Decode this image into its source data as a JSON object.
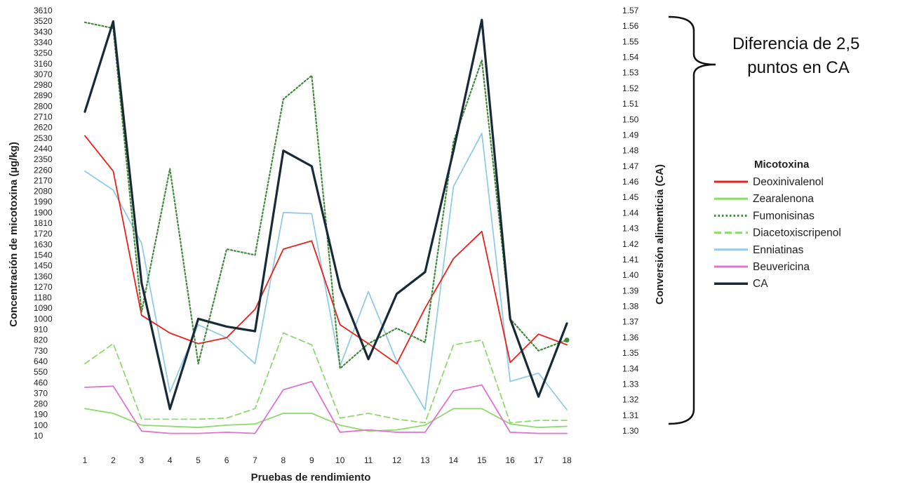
{
  "chart_data": {
    "type": "line",
    "x": [
      1,
      2,
      3,
      4,
      5,
      6,
      7,
      8,
      9,
      10,
      11,
      12,
      13,
      14,
      15,
      16,
      17,
      18
    ],
    "xlabel": "Pruebas de rendimiento",
    "ylabel": "Concentración de micotoxina (µg/kg)",
    "y2label": "Conversión alimenticia (CA)",
    "ylim": [
      10,
      3610
    ],
    "y2lim": [
      1.3,
      1.57
    ],
    "y_ticks": [
      "3610",
      "3520",
      "3430",
      "3340",
      "3250",
      "3160",
      "3070",
      "2980",
      "2890",
      "2800",
      "2710",
      "2620",
      "2530",
      "2440",
      "2350",
      "2260",
      "2170",
      "2080",
      "1990",
      "1900",
      "1810",
      "1720",
      "1630",
      "1540",
      "1450",
      "1360",
      "1270",
      "1180",
      "1090",
      "1000",
      "910",
      "820",
      "730",
      "640",
      "550",
      "460",
      "370",
      "280",
      "190",
      "100",
      "10"
    ],
    "y2_ticks": [
      "1.57",
      "1.56",
      "1.55",
      "1.54",
      "1.53",
      "1.52",
      "1.51",
      "1.50",
      "1.49",
      "1.48",
      "1.47",
      "1.46",
      "1.45",
      "1.44",
      "1.43",
      "1.42",
      "1.41",
      "1.40",
      "1.39",
      "1.38",
      "1.37",
      "1.36",
      "1.35",
      "1.34",
      "1.33",
      "1.32",
      "1.31",
      "1.30"
    ],
    "legend_title": "Micotoxina",
    "legend_position": "right",
    "grid": false,
    "series": [
      {
        "name": "Deoxinivalenol",
        "color": "#e8211d",
        "style": "solid",
        "axis": "left",
        "values": [
          2550,
          2250,
          1030,
          880,
          790,
          840,
          1080,
          1590,
          1660,
          950,
          790,
          620,
          1090,
          1510,
          1740,
          630,
          870,
          780
        ]
      },
      {
        "name": "Zearalenona",
        "color": "#8fd96e",
        "style": "solid",
        "axis": "left",
        "values": [
          240,
          200,
          100,
          90,
          80,
          100,
          110,
          200,
          200,
          100,
          50,
          60,
          100,
          240,
          240,
          110,
          80,
          90
        ]
      },
      {
        "name": "Fumonisinas",
        "color": "#3f8a3a",
        "style": "dotted",
        "axis": "left",
        "values": [
          3510,
          3460,
          1060,
          2270,
          620,
          1590,
          1540,
          2860,
          3060,
          580,
          790,
          920,
          800,
          2500,
          3190,
          1000,
          730,
          820
        ]
      },
      {
        "name": "Diacetoxiscripenol",
        "color": "#8fd96e",
        "style": "dashed",
        "axis": "left",
        "values": [
          620,
          790,
          150,
          150,
          150,
          160,
          240,
          880,
          780,
          160,
          200,
          150,
          120,
          780,
          820,
          120,
          140,
          140
        ]
      },
      {
        "name": "Enniatinas",
        "color": "#92cbe6",
        "style": "solid",
        "axis": "left",
        "values": [
          2250,
          2090,
          1640,
          380,
          950,
          840,
          620,
          1900,
          1890,
          600,
          1230,
          640,
          230,
          2120,
          2570,
          470,
          540,
          230
        ]
      },
      {
        "name": "Beuvericina",
        "color": "#dd74cf",
        "style": "solid",
        "axis": "left",
        "values": [
          420,
          430,
          50,
          30,
          30,
          40,
          30,
          400,
          470,
          40,
          60,
          40,
          40,
          390,
          440,
          40,
          30,
          30
        ]
      },
      {
        "name": "CA",
        "color": "#172a36",
        "style": "solid",
        "axis": "right",
        "values": [
          1.505,
          1.563,
          1.395,
          1.314,
          1.372,
          1.367,
          1.364,
          1.48,
          1.47,
          1.392,
          1.346,
          1.388,
          1.402,
          1.48,
          1.564,
          1.372,
          1.322,
          1.369
        ]
      }
    ],
    "annotation": "Diferencia de 2,5 puntos en CA"
  }
}
